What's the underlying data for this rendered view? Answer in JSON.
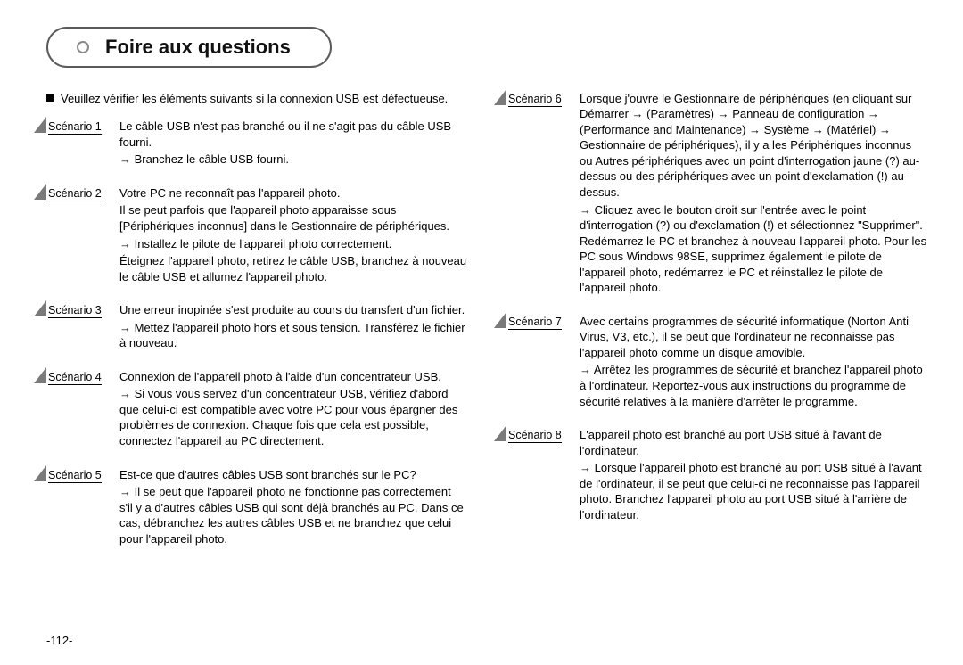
{
  "page_number": "-112-",
  "header_title": "Foire aux questions",
  "intro": "Veuillez vérifier les éléments suivants si la connexion USB est défectueuse.",
  "left_scenarios": [
    {
      "label": "Scénario 1",
      "lines": [
        "Le câble USB n'est pas branché ou il ne s'agit pas du câble USB fourni.",
        "→ Branchez le câble USB fourni."
      ]
    },
    {
      "label": "Scénario 2",
      "lines": [
        "Votre PC ne reconnaît pas l'appareil photo.",
        "Il se peut parfois que l'appareil photo apparaisse sous [Périphériques inconnus] dans le Gestionnaire de périphériques.",
        "→ Installez le pilote de l'appareil photo correctement.",
        "Éteignez l'appareil photo, retirez le câble USB, branchez à nouveau le câble USB et allumez l'appareil photo."
      ]
    },
    {
      "label": "Scénario 3",
      "lines": [
        "Une erreur inopinée s'est produite au cours du transfert d'un fichier.",
        "→ Mettez l'appareil photo hors et sous tension. Transférez le fichier à nouveau."
      ]
    },
    {
      "label": "Scénario 4",
      "lines": [
        "Connexion de l'appareil photo à l'aide d'un concentrateur USB.",
        "→ Si vous vous servez d'un concentrateur USB, vérifiez d'abord que celui-ci est compatible avec votre PC pour vous épargner des problèmes de connexion. Chaque fois que cela est possible, connectez l'appareil au PC directement."
      ]
    },
    {
      "label": "Scénario 5",
      "lines": [
        "Est-ce que d'autres câbles USB sont branchés sur le PC?",
        "→ Il se peut que l'appareil photo ne fonctionne pas correctement s'il y a d'autres câbles USB qui sont déjà branchés au PC. Dans ce cas, débranchez les autres câbles USB et ne branchez que celui pour l'appareil photo."
      ]
    }
  ],
  "right_scenarios": [
    {
      "label": "Scénario 6",
      "lines": [
        "Lorsque j'ouvre le Gestionnaire de périphériques (en cliquant sur Démarrer → (Paramètres) → Panneau de configuration → (Performance and Maintenance) → Système → (Matériel) → Gestionnaire de périphériques), il y a les Périphériques inconnus ou Autres périphériques avec un point d'interrogation jaune (?) au-dessus ou des périphériques avec un point d'exclamation (!) au-dessus.",
        "→ Cliquez avec le bouton droit sur l'entrée avec le point d'interrogation (?) ou d'exclamation (!) et sélectionnez \"Supprimer\". Redémarrez le PC et branchez à nouveau l'appareil photo. Pour les PC sous Windows 98SE, supprimez également le pilote de l'appareil photo, redémarrez le PC et réinstallez le pilote de l'appareil photo."
      ]
    },
    {
      "label": "Scénario 7",
      "lines": [
        "Avec certains programmes de sécurité informatique (Norton Anti Virus, V3, etc.), il se peut que l'ordinateur ne reconnaisse pas l'appareil photo comme un disque amovible.",
        "→ Arrêtez les programmes de sécurité et branchez l'appareil photo à l'ordinateur. Reportez-vous aux instructions du programme de sécurité relatives à la manière d'arrêter le programme."
      ]
    },
    {
      "label": "Scénario 8",
      "lines": [
        "L'appareil photo est branché au port USB situé à l'avant de l'ordinateur.",
        "→ Lorsque l'appareil photo est branché au port USB situé à l'avant de l'ordinateur, il se peut que celui-ci ne reconnaisse pas l'appareil photo. Branchez l'appareil photo au port USB situé à l'arrière de l'ordinateur."
      ]
    }
  ]
}
